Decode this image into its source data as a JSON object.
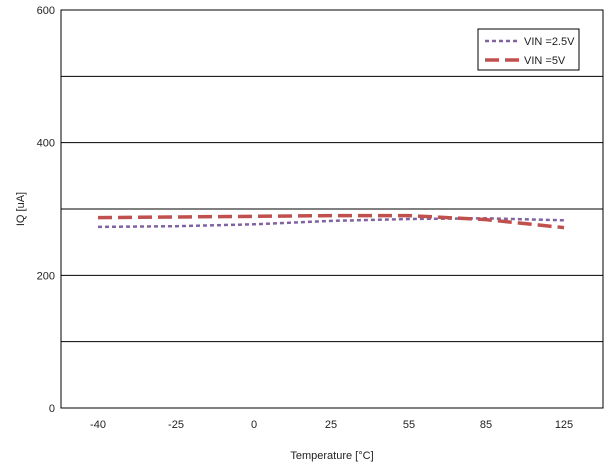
{
  "chart_data": {
    "type": "line",
    "title": "",
    "xlabel": "Temperature [°C]",
    "ylabel": "IQ [uA]",
    "categories": [
      "-40",
      "-25",
      "0",
      "25",
      "55",
      "85",
      "125"
    ],
    "ylim": [
      0,
      600
    ],
    "y_tick_labels": [
      "0",
      "200",
      "400",
      "600"
    ],
    "y_gridlines": [
      100,
      200,
      300,
      400,
      500
    ],
    "grid": true,
    "legend_position": "top-right",
    "series": [
      {
        "name": "VIN =2.5V",
        "values": [
          273,
          274,
          277,
          282,
          285,
          286,
          283
        ],
        "color": "#8064a2",
        "dash": "dotted"
      },
      {
        "name": "VIN =5V",
        "values": [
          287,
          288,
          289,
          290,
          290,
          284,
          272
        ],
        "color": "#c0504d",
        "dash": "dashed"
      }
    ]
  }
}
